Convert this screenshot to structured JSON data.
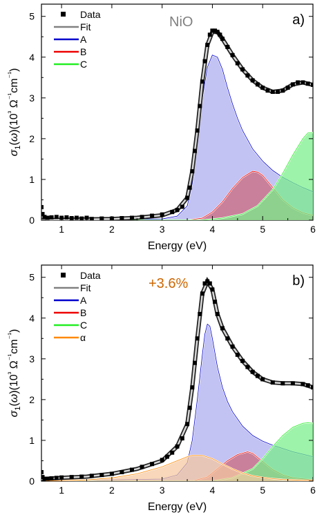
{
  "chart_data": [
    {
      "type": "area",
      "panel_label": "a)",
      "annotation": "NiO",
      "annotation_color": "#808080",
      "xlabel": "Energy (eV)",
      "ylabel": "σ1(ω)(10³ Ω⁻¹cm⁻¹)",
      "xlim": [
        0.6,
        6.0
      ],
      "ylim": [
        0,
        5.3
      ],
      "x_ticks": [
        "1",
        "2",
        "3",
        "4",
        "5",
        "6"
      ],
      "y_ticks": [
        "0",
        "1",
        "2",
        "3",
        "4",
        "5"
      ],
      "legend": [
        {
          "label": "Data",
          "color": "#000000",
          "marker": "square"
        },
        {
          "label": "Fit",
          "color": "#808080",
          "marker": "line"
        },
        {
          "label": "A",
          "color": "#0000cc",
          "marker": "line"
        },
        {
          "label": "B",
          "color": "#ee0000",
          "marker": "line"
        },
        {
          "label": "C",
          "color": "#22ee22",
          "marker": "line"
        }
      ],
      "series": [
        {
          "name": "Data",
          "kind": "scatter",
          "x": [
            0.6,
            0.62,
            0.66,
            0.72,
            0.8,
            0.9,
            1.0,
            1.1,
            1.2,
            1.3,
            1.4,
            1.5,
            1.6,
            1.8,
            2.0,
            2.2,
            2.4,
            2.6,
            2.8,
            3.0,
            3.2,
            3.3,
            3.4,
            3.5,
            3.55,
            3.6,
            3.65,
            3.7,
            3.75,
            3.8,
            3.85,
            3.9,
            3.95,
            4.0,
            4.05,
            4.1,
            4.15,
            4.2,
            4.3,
            4.4,
            4.5,
            4.6,
            4.7,
            4.8,
            4.9,
            5.0,
            5.1,
            5.2,
            5.3,
            5.4,
            5.5,
            5.6,
            5.7,
            5.8,
            5.9,
            6.0
          ],
          "y": [
            0.32,
            0.15,
            0.08,
            0.06,
            0.07,
            0.08,
            0.06,
            0.07,
            0.05,
            0.06,
            0.04,
            0.06,
            0.03,
            0.04,
            0.04,
            0.05,
            0.06,
            0.08,
            0.11,
            0.14,
            0.2,
            0.25,
            0.33,
            0.55,
            0.8,
            1.2,
            1.7,
            2.2,
            2.8,
            3.4,
            3.9,
            4.3,
            4.55,
            4.65,
            4.65,
            4.62,
            4.55,
            4.45,
            4.25,
            4.05,
            3.85,
            3.7,
            3.55,
            3.43,
            3.33,
            3.25,
            3.18,
            3.15,
            3.15,
            3.18,
            3.25,
            3.33,
            3.38,
            3.38,
            3.35,
            3.32
          ]
        },
        {
          "name": "Fit",
          "kind": "line",
          "x": [
            0.6,
            1.0,
            1.5,
            2.0,
            2.5,
            3.0,
            3.3,
            3.5,
            3.6,
            3.7,
            3.8,
            3.9,
            4.0,
            4.1,
            4.2,
            4.3,
            4.4,
            4.6,
            4.8,
            5.0,
            5.2,
            5.4,
            5.6,
            5.8,
            6.0
          ],
          "y": [
            0.0,
            0.01,
            0.02,
            0.03,
            0.06,
            0.12,
            0.25,
            0.55,
            1.2,
            2.2,
            3.4,
            4.3,
            4.62,
            4.62,
            4.45,
            4.25,
            4.05,
            3.7,
            3.43,
            3.25,
            3.15,
            3.18,
            3.33,
            3.38,
            3.32
          ]
        },
        {
          "name": "A",
          "kind": "area",
          "color": "#0000cc",
          "fill": "#aaaaee",
          "x": [
            0.6,
            3.0,
            3.3,
            3.5,
            3.6,
            3.7,
            3.8,
            3.9,
            4.0,
            4.1,
            4.2,
            4.3,
            4.4,
            4.5,
            4.6,
            4.8,
            5.0,
            5.2,
            5.4,
            5.6,
            5.8,
            6.0
          ],
          "y": [
            0.0,
            0.03,
            0.1,
            0.35,
            0.9,
            1.9,
            3.0,
            3.75,
            4.05,
            4.0,
            3.7,
            3.25,
            2.85,
            2.5,
            2.2,
            1.75,
            1.45,
            1.22,
            1.05,
            0.92,
            0.8,
            0.7
          ]
        },
        {
          "name": "B",
          "kind": "area",
          "color": "#ee0000",
          "fill": "#cc6677",
          "x": [
            0.6,
            3.5,
            3.8,
            4.0,
            4.2,
            4.4,
            4.6,
            4.8,
            4.9,
            5.0,
            5.2,
            5.4,
            5.6,
            5.8,
            6.0
          ],
          "y": [
            0.0,
            0.0,
            0.05,
            0.2,
            0.45,
            0.78,
            1.05,
            1.2,
            1.18,
            1.1,
            0.8,
            0.5,
            0.3,
            0.18,
            0.12
          ]
        },
        {
          "name": "C",
          "kind": "area",
          "color": "#22ee22",
          "fill": "#77ee88",
          "x": [
            0.6,
            3.8,
            4.2,
            4.6,
            4.9,
            5.2,
            5.4,
            5.6,
            5.8,
            5.9,
            6.0
          ],
          "y": [
            0.0,
            0.0,
            0.05,
            0.15,
            0.35,
            0.75,
            1.15,
            1.6,
            2.0,
            2.14,
            2.15
          ]
        }
      ]
    },
    {
      "type": "area",
      "panel_label": "b)",
      "annotation": "+3.6%",
      "annotation_color": "#cc6600",
      "xlabel": "Energy (eV)",
      "ylabel": "σ1(ω)(10³ Ω⁻¹cm⁻¹)",
      "xlim": [
        0.6,
        6.0
      ],
      "ylim": [
        0,
        5.3
      ],
      "x_ticks": [
        "1",
        "2",
        "3",
        "4",
        "5",
        "6"
      ],
      "y_ticks": [
        "0",
        "1",
        "2",
        "3",
        "4",
        "5"
      ],
      "legend": [
        {
          "label": "Data",
          "color": "#000000",
          "marker": "square"
        },
        {
          "label": "Fit",
          "color": "#808080",
          "marker": "line"
        },
        {
          "label": "A",
          "color": "#0000cc",
          "marker": "line"
        },
        {
          "label": "B",
          "color": "#ee0000",
          "marker": "line"
        },
        {
          "label": "C",
          "color": "#22ee22",
          "marker": "line"
        },
        {
          "label": "α",
          "color": "#ff8800",
          "marker": "line"
        }
      ],
      "series": [
        {
          "name": "Data",
          "kind": "scatter",
          "x": [
            0.6,
            0.62,
            0.66,
            0.72,
            0.8,
            0.9,
            1.0,
            1.2,
            1.4,
            1.6,
            1.8,
            2.0,
            2.2,
            2.4,
            2.6,
            2.8,
            3.0,
            3.1,
            3.2,
            3.3,
            3.4,
            3.5,
            3.55,
            3.6,
            3.65,
            3.7,
            3.75,
            3.8,
            3.85,
            3.9,
            3.95,
            4.0,
            4.05,
            4.1,
            4.2,
            4.3,
            4.4,
            4.5,
            4.6,
            4.7,
            4.8,
            4.9,
            5.0,
            5.2,
            5.4,
            5.6,
            5.8,
            5.9,
            6.0
          ],
          "y": [
            0.22,
            0.1,
            0.06,
            0.06,
            0.07,
            0.08,
            0.09,
            0.1,
            0.11,
            0.13,
            0.15,
            0.18,
            0.22,
            0.28,
            0.35,
            0.42,
            0.52,
            0.6,
            0.7,
            0.85,
            1.05,
            1.4,
            1.8,
            2.3,
            2.9,
            3.5,
            4.1,
            4.6,
            4.85,
            4.9,
            4.85,
            4.7,
            4.4,
            4.1,
            3.75,
            3.5,
            3.3,
            3.1,
            2.95,
            2.8,
            2.68,
            2.58,
            2.5,
            2.42,
            2.4,
            2.4,
            2.38,
            2.35,
            2.3
          ]
        },
        {
          "name": "Fit",
          "kind": "line",
          "x": [
            0.6,
            1.0,
            1.5,
            2.0,
            2.5,
            3.0,
            3.3,
            3.5,
            3.6,
            3.7,
            3.8,
            3.9,
            4.0,
            4.1,
            4.2,
            4.4,
            4.6,
            4.8,
            5.0,
            5.2,
            5.4,
            5.6,
            5.8,
            6.0
          ],
          "y": [
            0.05,
            0.08,
            0.11,
            0.18,
            0.3,
            0.5,
            0.85,
            1.4,
            2.3,
            3.5,
            4.6,
            4.9,
            4.7,
            4.1,
            3.75,
            3.3,
            2.95,
            2.68,
            2.5,
            2.42,
            2.4,
            2.4,
            2.38,
            2.3
          ]
        },
        {
          "name": "A",
          "kind": "area",
          "color": "#0000cc",
          "fill": "#aaaaee",
          "x": [
            0.6,
            3.0,
            3.3,
            3.5,
            3.6,
            3.7,
            3.8,
            3.85,
            3.9,
            3.95,
            4.0,
            4.1,
            4.2,
            4.3,
            4.4,
            4.6,
            4.8,
            5.0,
            5.2,
            5.4,
            5.6,
            5.8,
            6.0
          ],
          "y": [
            0.0,
            0.05,
            0.15,
            0.45,
            1.0,
            2.0,
            3.1,
            3.6,
            3.85,
            3.8,
            3.5,
            2.8,
            2.3,
            1.95,
            1.7,
            1.35,
            1.12,
            0.98,
            0.88,
            0.8,
            0.72,
            0.66,
            0.6
          ]
        },
        {
          "name": "B",
          "kind": "area",
          "color": "#ee0000",
          "fill": "#cc6677",
          "x": [
            0.6,
            3.6,
            3.9,
            4.1,
            4.3,
            4.5,
            4.7,
            4.8,
            5.0,
            5.2,
            5.4,
            5.6,
            6.0
          ],
          "y": [
            0.0,
            0.0,
            0.1,
            0.3,
            0.5,
            0.65,
            0.72,
            0.68,
            0.48,
            0.28,
            0.15,
            0.08,
            0.03
          ]
        },
        {
          "name": "C",
          "kind": "area",
          "color": "#22ee22",
          "fill": "#77ee88",
          "x": [
            0.6,
            4.0,
            4.4,
            4.8,
            5.0,
            5.2,
            5.4,
            5.6,
            5.8,
            5.9,
            6.0
          ],
          "y": [
            0.0,
            0.0,
            0.08,
            0.3,
            0.55,
            0.85,
            1.12,
            1.32,
            1.42,
            1.43,
            1.42
          ]
        },
        {
          "name": "α",
          "kind": "area",
          "color": "#ff8800",
          "fill": "#f5c8a0",
          "x": [
            0.6,
            1.5,
            2.0,
            2.5,
            3.0,
            3.3,
            3.5,
            3.6,
            3.8,
            4.0,
            4.2,
            4.4,
            4.6,
            4.8,
            5.0,
            5.2,
            5.4,
            5.6,
            5.8,
            6.0
          ],
          "y": [
            0.0,
            0.03,
            0.08,
            0.18,
            0.35,
            0.5,
            0.6,
            0.63,
            0.63,
            0.55,
            0.42,
            0.3,
            0.2,
            0.13,
            0.09,
            0.06,
            0.04,
            0.03,
            0.02,
            0.02
          ]
        }
      ]
    }
  ]
}
